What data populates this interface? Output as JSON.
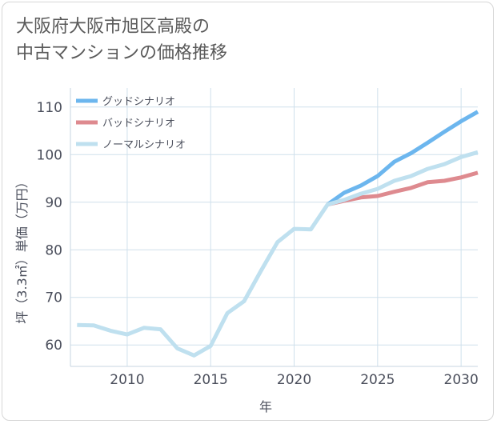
{
  "title_line1": "大阪府大阪市旭区高殿の",
  "title_line2": "中古マンションの価格推移",
  "chart_data": {
    "type": "line",
    "title": "大阪府大阪市旭区高殿の中古マンションの価格推移",
    "xlabel": "年",
    "ylabel": "坪（3.3㎡）単価（万円）",
    "xlim": [
      2006.6,
      2031
    ],
    "ylim": [
      55.5,
      114
    ],
    "xticks": [
      2010,
      2015,
      2020,
      2025,
      2030
    ],
    "yticks": [
      60,
      70,
      80,
      90,
      100,
      110
    ],
    "grid": true,
    "legend_position": "top-left",
    "series": [
      {
        "name": "グッドシナリオ",
        "color": "#6cb6ee",
        "x": [
          2022,
          2023,
          2024,
          2025,
          2026,
          2027,
          2028,
          2029,
          2030,
          2031
        ],
        "values": [
          89.5,
          92.0,
          93.5,
          95.5,
          98.5,
          100.3,
          102.5,
          104.8,
          107.0,
          109.0
        ]
      },
      {
        "name": "バッドシナリオ",
        "color": "#de8a8f",
        "x": [
          2022,
          2023,
          2024,
          2025,
          2026,
          2027,
          2028,
          2029,
          2030,
          2031
        ],
        "values": [
          89.5,
          90.3,
          91.0,
          91.3,
          92.2,
          93.0,
          94.2,
          94.5,
          95.2,
          96.2
        ]
      },
      {
        "name": "ノーマルシナリオ",
        "color": "#bfe0ef",
        "x": [
          2007,
          2008,
          2009,
          2010,
          2011,
          2012,
          2013,
          2014,
          2015,
          2016,
          2017,
          2018,
          2019,
          2020,
          2021,
          2022,
          2023,
          2024,
          2025,
          2026,
          2027,
          2028,
          2029,
          2030,
          2031
        ],
        "values": [
          64.2,
          64.1,
          63.0,
          62.2,
          63.6,
          63.3,
          59.3,
          57.8,
          59.8,
          66.7,
          69.2,
          75.5,
          81.6,
          84.4,
          84.3,
          89.5,
          90.5,
          91.8,
          92.8,
          94.5,
          95.5,
          97.0,
          98.0,
          99.5,
          100.5
        ]
      }
    ]
  }
}
